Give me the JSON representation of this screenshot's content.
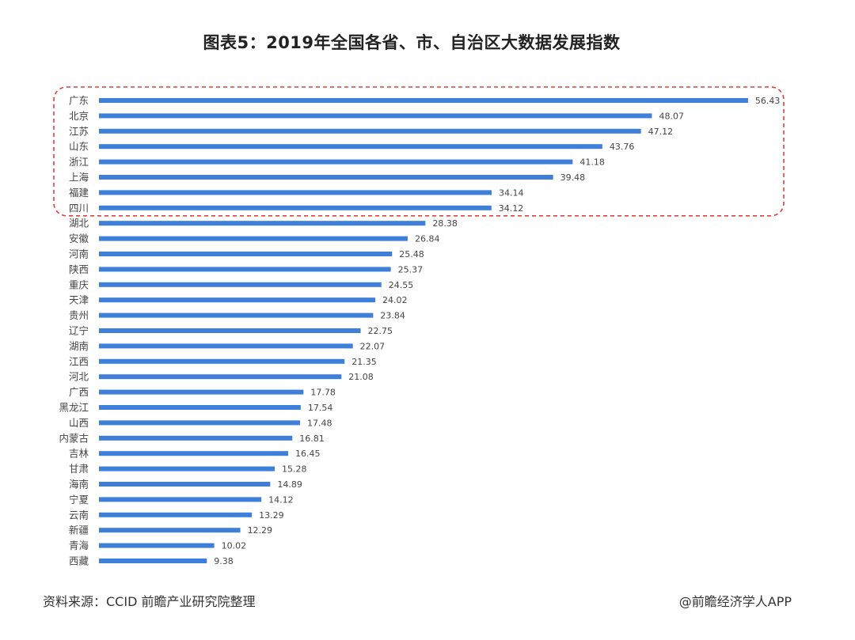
{
  "chart_data": {
    "type": "bar",
    "orientation": "horizontal",
    "title": "图表5：2019年全国各省、市、自治区大数据发展指数",
    "categories": [
      "广东",
      "北京",
      "江苏",
      "山东",
      "浙江",
      "上海",
      "福建",
      "四川",
      "湖北",
      "安徽",
      "河南",
      "陕西",
      "重庆",
      "天津",
      "贵州",
      "辽宁",
      "湖南",
      "江西",
      "河北",
      "广西",
      "黑龙江",
      "山西",
      "内蒙古",
      "吉林",
      "甘肃",
      "海南",
      "宁夏",
      "云南",
      "新疆",
      "青海",
      "西藏"
    ],
    "values": [
      56.43,
      48.07,
      47.12,
      43.76,
      41.18,
      39.48,
      34.14,
      34.12,
      28.38,
      26.84,
      25.48,
      25.37,
      24.55,
      24.02,
      23.84,
      22.75,
      22.07,
      21.35,
      21.08,
      17.78,
      17.54,
      17.48,
      16.81,
      16.45,
      15.28,
      14.89,
      14.12,
      13.29,
      12.29,
      10.02,
      9.38
    ],
    "bar_color": "#3d7fd9",
    "highlight": {
      "count": 8,
      "border_color": "#e0413b",
      "style": "dashed"
    },
    "grid": false,
    "legend": false
  },
  "footer": {
    "source": "资料来源：CCID 前瞻产业研究院整理",
    "credit": "@前瞻经济学人APP"
  }
}
